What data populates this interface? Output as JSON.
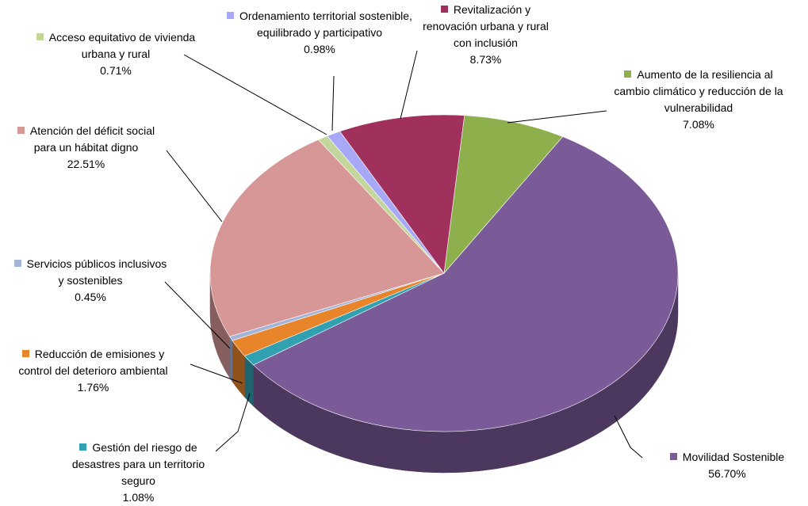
{
  "chart_data": {
    "type": "pie3d",
    "categories": [
      "Aumento de la resiliencia al cambio climático y reducción de la vulnerabilidad",
      "Movilidad Sostenible",
      "Gestión del riesgo de desastres para un territorio seguro",
      "Reducción de emisiones y control del deterioro ambiental",
      "Servicios públicos inclusivos y sostenibles",
      "Atención del déficit social para un hábitat digno",
      "Acceso equitativo de vivienda urbana y rural",
      "Ordenamiento territorial sostenible, equilibrado y participativo",
      "Revitalización y renovación urbana y rural con inclusión"
    ],
    "values": [
      7.08,
      56.7,
      1.08,
      1.76,
      0.45,
      22.51,
      0.71,
      0.98,
      8.73
    ],
    "value_labels": [
      "7.08%",
      "56.70%",
      "1.08%",
      "1.76%",
      "0.45%",
      "22.51%",
      "0.71%",
      "0.98%",
      "8.73%"
    ],
    "colors": [
      "#8db04d",
      "#7b5a98",
      "#31a0b1",
      "#e8842a",
      "#a5b5da",
      "#d89797",
      "#c3d69b",
      "#a8a8f8",
      "#a0305c"
    ]
  }
}
